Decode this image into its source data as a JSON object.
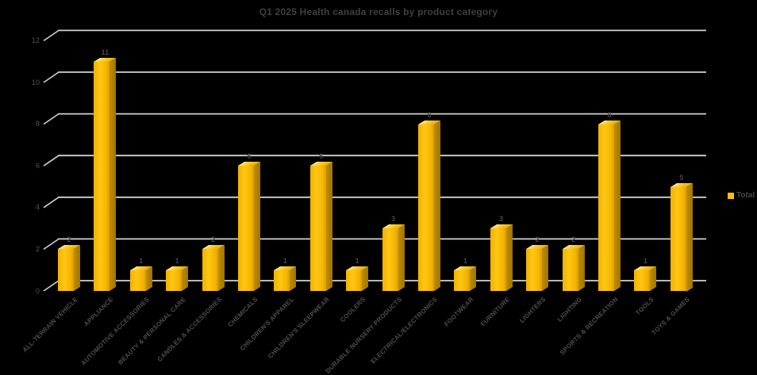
{
  "title": "Q1 2025 Health canada recalls by product category",
  "legend": {
    "label": "Total"
  },
  "colors": {
    "background": "#000000",
    "gridline": "#d2d2d2",
    "bar": "#FFC000",
    "text": "#454545"
  },
  "y_axis": {
    "ticks": [
      0,
      2,
      4,
      6,
      8,
      10,
      12
    ]
  },
  "chart_data": {
    "type": "bar",
    "style": "3d-column",
    "title": "Q1 2025 Health canada recalls by product category",
    "categories": [
      "ALL-TERRAIN VEHICLE",
      "APPLIANCE",
      "AUTOMOTIVE ACCESSORIES",
      "BEAUTY & PERSONAL CARE",
      "CANDLES & ACCESSORIES",
      "CHEMICALS",
      "CHILDREN'S APPAREL",
      "CHILDREN'S SLEEPWEAR",
      "COOLERS",
      "DURABLE NURSERY PRODUCTS",
      "ELECTRICAL/ELECTRONICS",
      "FOOTWEAR",
      "FURNITURE",
      "LIGHTERS",
      "LIGHTING",
      "SPORTS & RECREATION",
      "TOOLS",
      "TOYS & GAMES"
    ],
    "series": [
      {
        "name": "Total",
        "values": [
          2,
          11,
          1,
          1,
          2,
          6,
          1,
          6,
          1,
          3,
          8,
          1,
          3,
          2,
          2,
          8,
          1,
          5
        ]
      }
    ],
    "xlabel": "",
    "ylabel": "",
    "ylim": [
      0,
      12
    ],
    "grid": true,
    "legend_position": "right",
    "data_labels": true
  }
}
